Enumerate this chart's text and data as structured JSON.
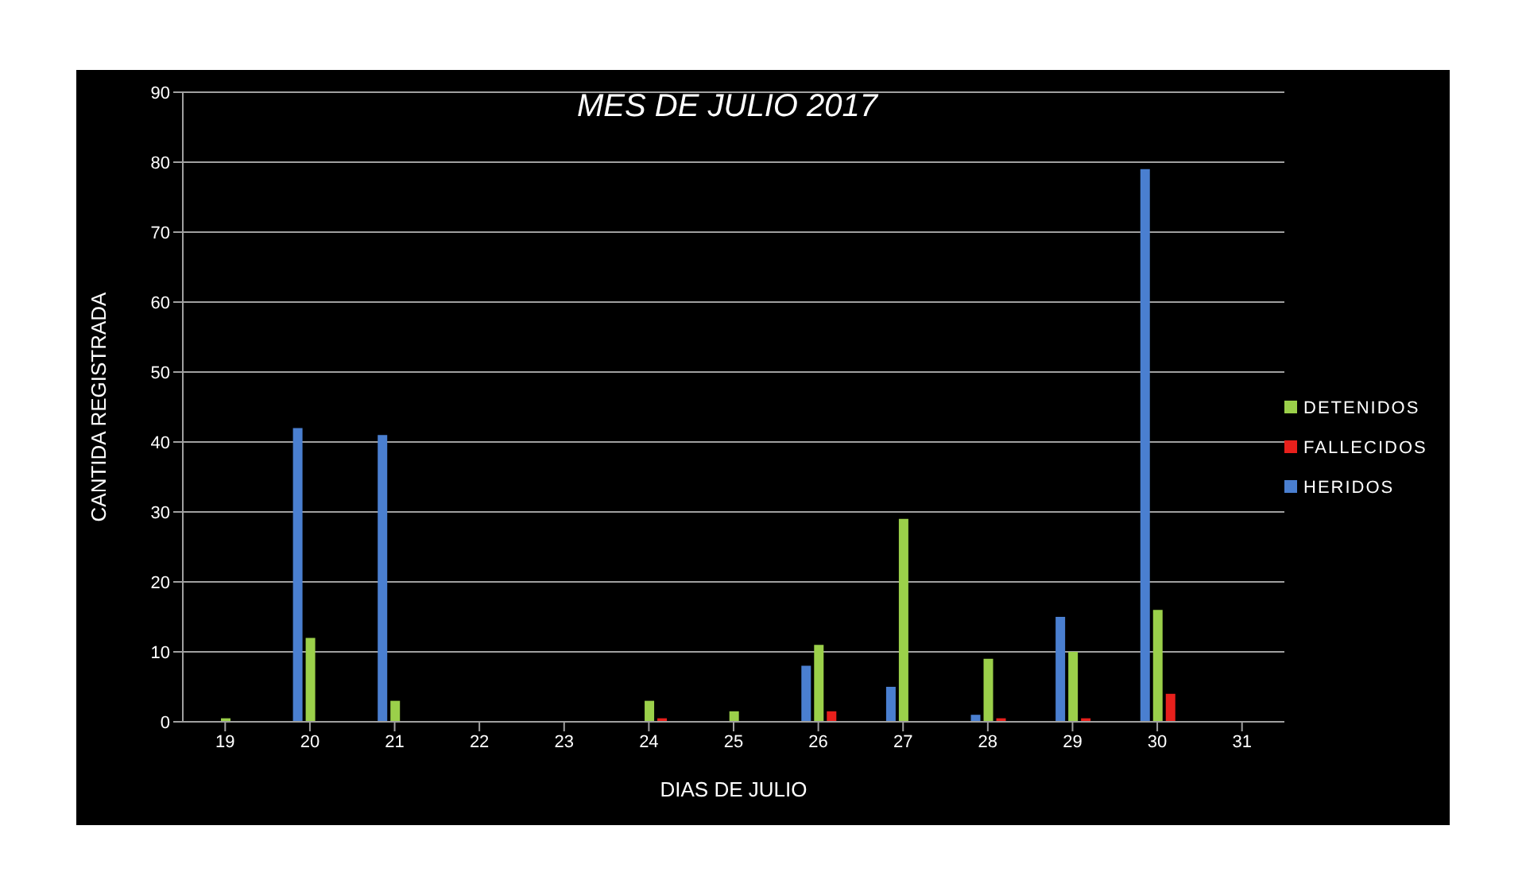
{
  "chart_data": {
    "type": "bar",
    "title": "MES DE JULIO 2017",
    "xlabel": "DIAS DE JULIO",
    "ylabel": "CANTIDA REGISTRADA",
    "categories": [
      "19",
      "20",
      "21",
      "22",
      "23",
      "24",
      "25",
      "26",
      "27",
      "28",
      "29",
      "30",
      "31"
    ],
    "series": [
      {
        "name": "HERIDOS",
        "color": "#4a7fd0",
        "values": [
          0,
          42,
          41,
          0,
          0,
          0,
          0,
          8,
          5,
          1,
          15,
          79,
          0
        ]
      },
      {
        "name": "DETENIDOS",
        "color": "#9bd04a",
        "values": [
          0.5,
          12,
          3,
          0,
          0,
          3,
          1.5,
          11,
          29,
          9,
          10,
          16,
          0
        ]
      },
      {
        "name": "FALLECIDOS",
        "color": "#e8201c",
        "values": [
          0,
          0,
          0,
          0,
          0,
          0.5,
          0,
          1.5,
          0,
          0.5,
          0.5,
          4,
          0
        ]
      }
    ],
    "ylim": [
      0,
      90
    ],
    "yticks": [
      0,
      10,
      20,
      30,
      40,
      50,
      60,
      70,
      80,
      90
    ],
    "grid": "y",
    "legend": "right"
  }
}
